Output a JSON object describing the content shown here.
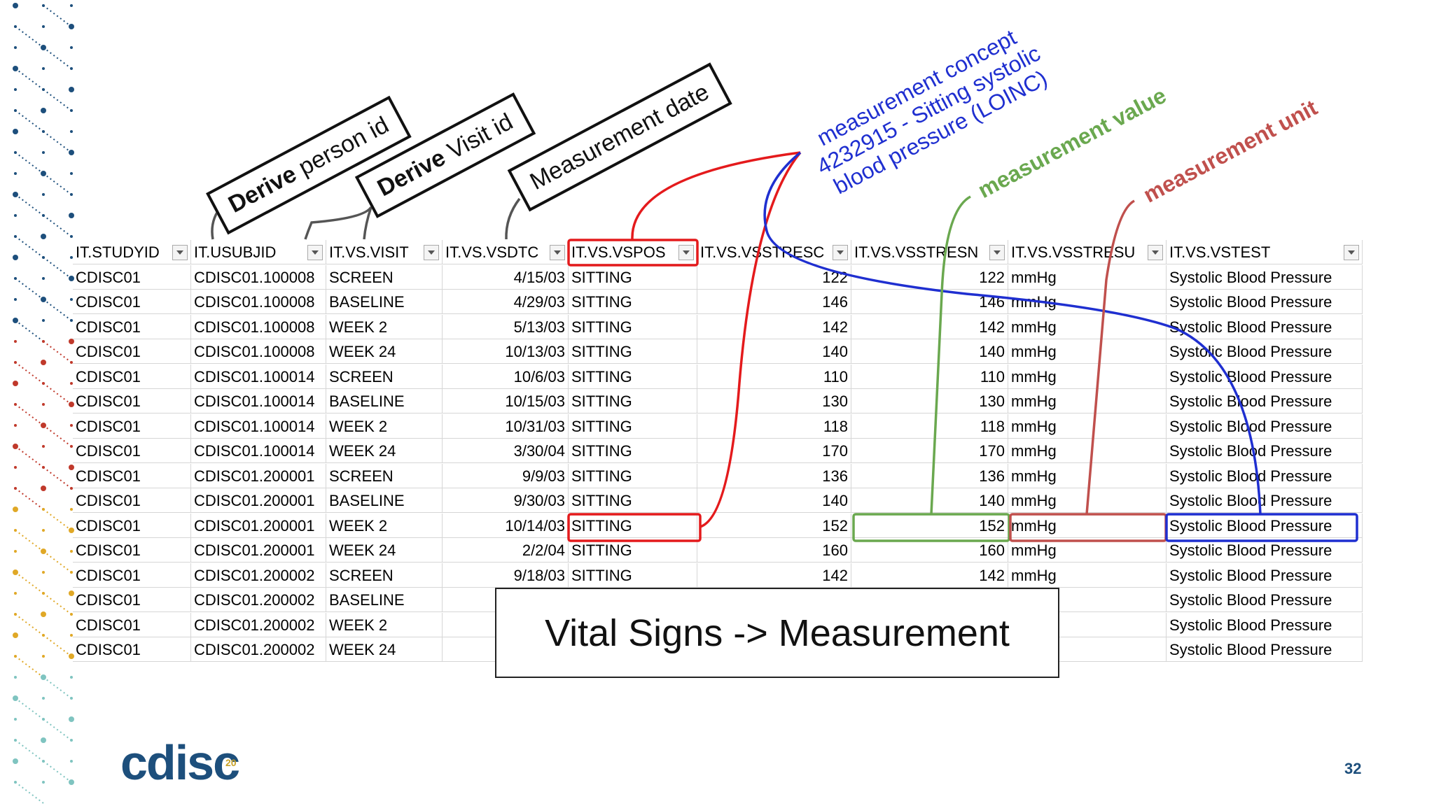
{
  "callouts": [
    {
      "emphasis": "Derive",
      "text": "person id"
    },
    {
      "emphasis": "Derive",
      "text": "Visit id"
    },
    {
      "text": "Measurement date"
    }
  ],
  "annotations": {
    "concept": [
      "measurement concept",
      "4232915 - Sitting systolic",
      "blood pressure (LOINC)"
    ],
    "value": "measurement value",
    "unit": "measurement unit"
  },
  "table": {
    "columns": [
      "IT.STUDYID",
      "IT.USUBJID",
      "IT.VS.VISIT",
      "IT.VS.VSDTC",
      "IT.VS.VSPOS",
      "IT.VS.VSSTRESC",
      "IT.VS.VSSTRESN",
      "IT.VS.VSSTRESU",
      "IT.VS.VSTEST"
    ],
    "rows": [
      [
        "CDISC01",
        "CDISC01.100008",
        "SCREEN",
        "4/15/03",
        "SITTING",
        "122",
        "122",
        "mmHg",
        "Systolic Blood Pressure"
      ],
      [
        "CDISC01",
        "CDISC01.100008",
        "BASELINE",
        "4/29/03",
        "SITTING",
        "146",
        "146",
        "mmHg",
        "Systolic Blood Pressure"
      ],
      [
        "CDISC01",
        "CDISC01.100008",
        "WEEK 2",
        "5/13/03",
        "SITTING",
        "142",
        "142",
        "mmHg",
        "Systolic Blood Pressure"
      ],
      [
        "CDISC01",
        "CDISC01.100008",
        "WEEK 24",
        "10/13/03",
        "SITTING",
        "140",
        "140",
        "mmHg",
        "Systolic Blood Pressure"
      ],
      [
        "CDISC01",
        "CDISC01.100014",
        "SCREEN",
        "10/6/03",
        "SITTING",
        "110",
        "110",
        "mmHg",
        "Systolic Blood Pressure"
      ],
      [
        "CDISC01",
        "CDISC01.100014",
        "BASELINE",
        "10/15/03",
        "SITTING",
        "130",
        "130",
        "mmHg",
        "Systolic Blood Pressure"
      ],
      [
        "CDISC01",
        "CDISC01.100014",
        "WEEK 2",
        "10/31/03",
        "SITTING",
        "118",
        "118",
        "mmHg",
        "Systolic Blood Pressure"
      ],
      [
        "CDISC01",
        "CDISC01.100014",
        "WEEK 24",
        "3/30/04",
        "SITTING",
        "170",
        "170",
        "mmHg",
        "Systolic Blood Pressure"
      ],
      [
        "CDISC01",
        "CDISC01.200001",
        "SCREEN",
        "9/9/03",
        "SITTING",
        "136",
        "136",
        "mmHg",
        "Systolic Blood Pressure"
      ],
      [
        "CDISC01",
        "CDISC01.200001",
        "BASELINE",
        "9/30/03",
        "SITTING",
        "140",
        "140",
        "mmHg",
        "Systolic Blood Pressure"
      ],
      [
        "CDISC01",
        "CDISC01.200001",
        "WEEK 2",
        "10/14/03",
        "SITTING",
        "152",
        "152",
        "mmHg",
        "Systolic Blood Pressure"
      ],
      [
        "CDISC01",
        "CDISC01.200001",
        "WEEK 24",
        "2/2/04",
        "SITTING",
        "160",
        "160",
        "mmHg",
        "Systolic Blood Pressure"
      ],
      [
        "CDISC01",
        "CDISC01.200002",
        "SCREEN",
        "9/18/03",
        "SITTING",
        "142",
        "142",
        "mmHg",
        "Systolic Blood Pressure"
      ],
      [
        "CDISC01",
        "CDISC01.200002",
        "BASELINE",
        null,
        null,
        null,
        null,
        null,
        "Systolic Blood Pressure"
      ],
      [
        "CDISC01",
        "CDISC01.200002",
        "WEEK 2",
        null,
        null,
        null,
        null,
        null,
        "Systolic Blood Pressure"
      ],
      [
        "CDISC01",
        "CDISC01.200002",
        "WEEK 24",
        null,
        null,
        null,
        null,
        null,
        "Systolic Blood Pressure"
      ]
    ]
  },
  "overlay_title": "Vital Signs -> Measurement",
  "logo": "cdisc",
  "logo_badge": "20",
  "page_number": "32"
}
